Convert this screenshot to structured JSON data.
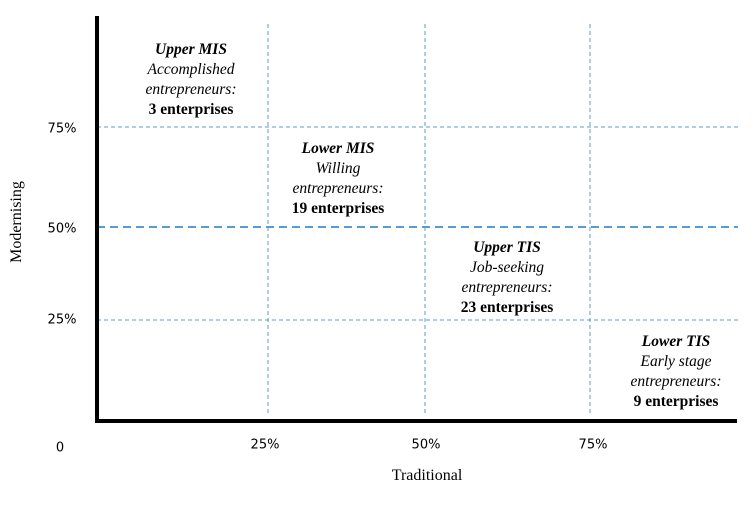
{
  "axes": {
    "x_title": "Traditional",
    "y_title": "Modernising",
    "origin_label": "0",
    "x_ticks": [
      "25%",
      "50%",
      "75%"
    ],
    "y_ticks": [
      "75%",
      "50%",
      "25%"
    ]
  },
  "quadrants": [
    {
      "title": "Upper MIS",
      "line1": "Accomplished",
      "line2": "entrepreneurs:",
      "count": "3 enterprises"
    },
    {
      "title": "Lower MIS",
      "line1": "Willing",
      "line2": "entrepreneurs:",
      "count": "19 enterprises"
    },
    {
      "title": "Upper TIS",
      "line1": "Job-seeking",
      "line2": "entrepreneurs:",
      "count": "23 enterprises"
    },
    {
      "title": "Lower TIS",
      "line1": "Early stage",
      "line2": "entrepreneurs:",
      "count": "9 enterprises"
    }
  ],
  "colors": {
    "grid": "#5b9bd5",
    "axis": "#000000"
  }
}
